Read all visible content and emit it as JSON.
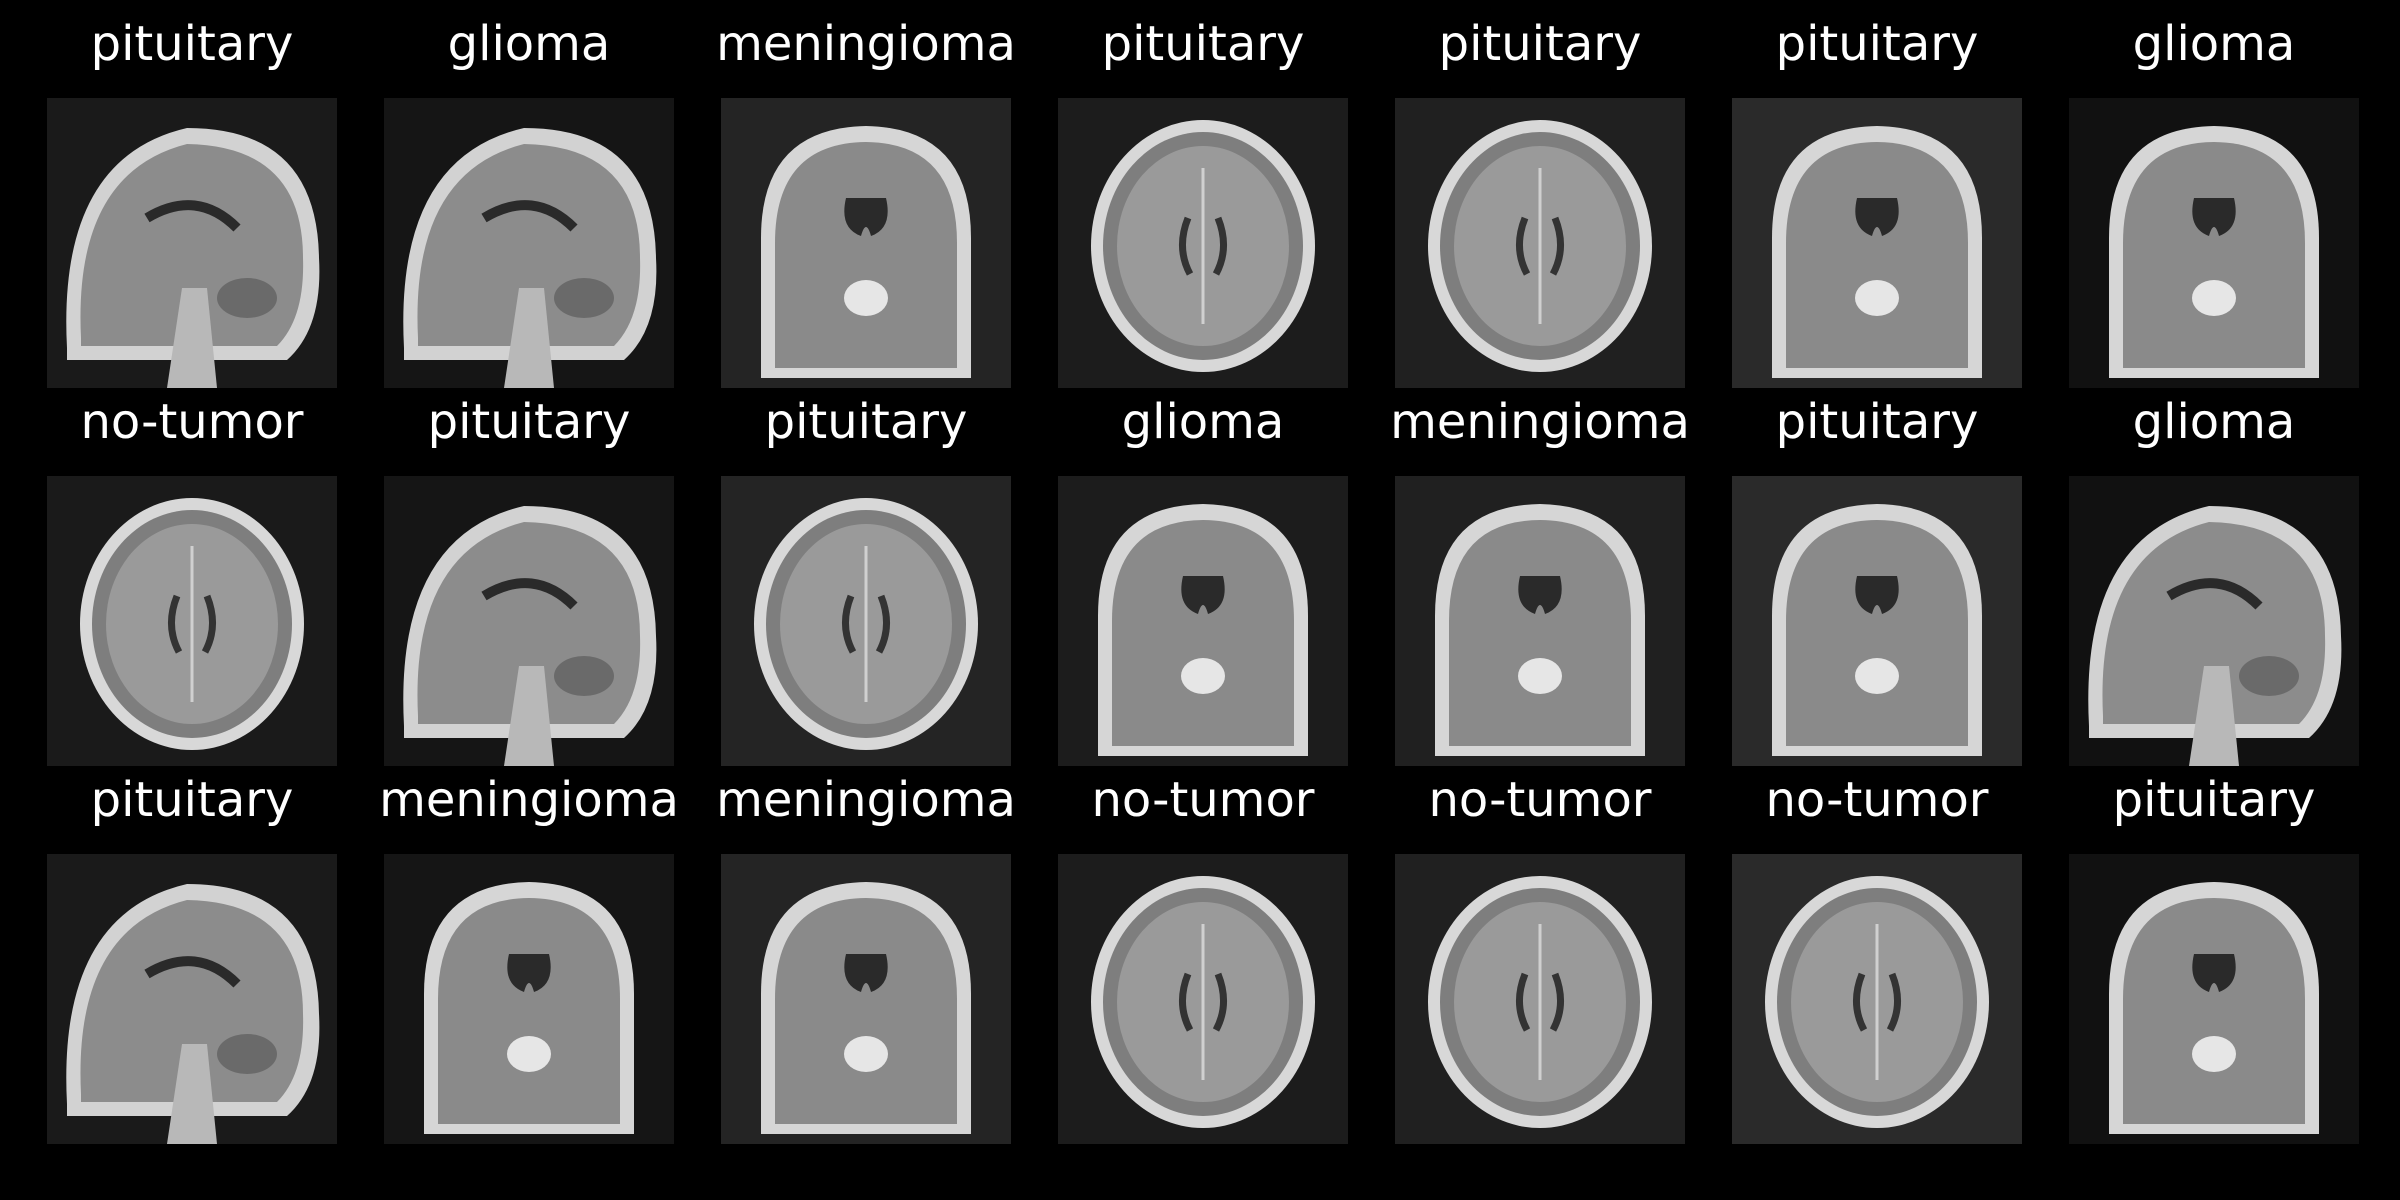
{
  "background": "#000000",
  "label_color": "#ffffff",
  "grid": {
    "rows": 3,
    "cols": 7,
    "items": [
      {
        "label": "pituitary",
        "view": "sagittal"
      },
      {
        "label": "glioma",
        "view": "sagittal"
      },
      {
        "label": "meningioma",
        "view": "coronal"
      },
      {
        "label": "pituitary",
        "view": "axial"
      },
      {
        "label": "pituitary",
        "view": "axial"
      },
      {
        "label": "pituitary",
        "view": "coronal"
      },
      {
        "label": "glioma",
        "view": "coronal"
      },
      {
        "label": "no-tumor",
        "view": "axial"
      },
      {
        "label": "pituitary",
        "view": "sagittal"
      },
      {
        "label": "pituitary",
        "view": "axial"
      },
      {
        "label": "glioma",
        "view": "coronal"
      },
      {
        "label": "meningioma",
        "view": "coronal"
      },
      {
        "label": "pituitary",
        "view": "coronal"
      },
      {
        "label": "glioma",
        "view": "sagittal"
      },
      {
        "label": "pituitary",
        "view": "sagittal"
      },
      {
        "label": "meningioma",
        "view": "coronal"
      },
      {
        "label": "meningioma",
        "view": "coronal"
      },
      {
        "label": "no-tumor",
        "view": "axial"
      },
      {
        "label": "no-tumor",
        "view": "axial"
      },
      {
        "label": "no-tumor",
        "view": "axial"
      },
      {
        "label": "pituitary",
        "view": "coronal"
      }
    ]
  }
}
